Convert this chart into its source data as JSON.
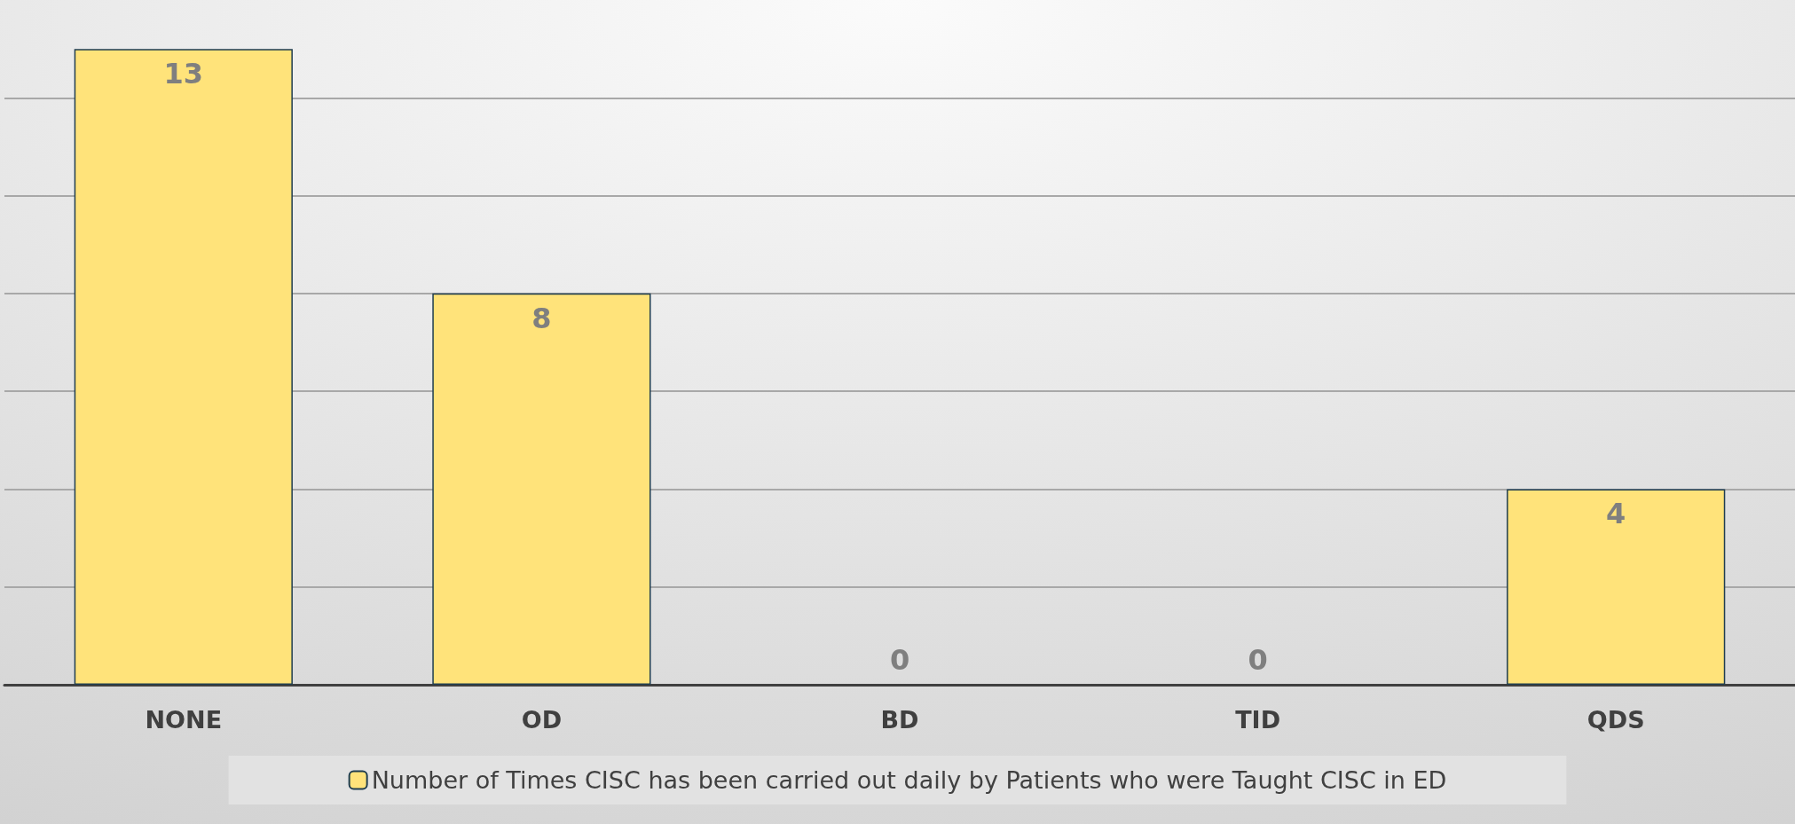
{
  "chart_data": {
    "type": "bar",
    "categories": [
      "NONE",
      "OD",
      "BD",
      "TID",
      "QDS"
    ],
    "series": [
      {
        "name": "Number of Times CISC has been carried out daily by Patients who were Taught CISC in ED",
        "color": "#ffe37a",
        "values": [
          13,
          8,
          0,
          0,
          4
        ]
      }
    ],
    "ylim": [
      0,
      14
    ],
    "yticks": [
      {
        "value": 0,
        "label": null
      },
      {
        "value": 2,
        "label": null
      },
      {
        "value": 4,
        "label": null
      },
      {
        "value": 6,
        "label": null
      },
      {
        "value": 8,
        "label": null
      },
      {
        "value": 10,
        "label": null
      },
      {
        "value": 12,
        "label": null
      }
    ],
    "grid": "y",
    "data_labels": true,
    "legend": "bottom",
    "tick_labels": "x"
  }
}
